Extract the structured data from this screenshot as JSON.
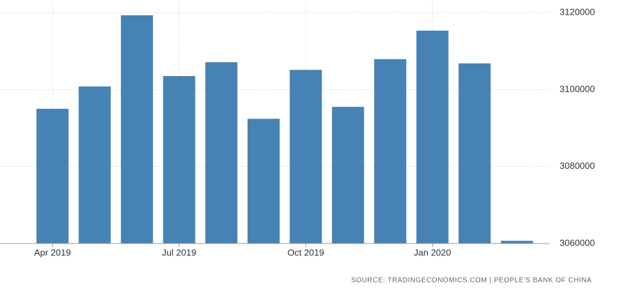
{
  "chart_data": {
    "type": "bar",
    "categories": [
      "Apr 2019",
      null,
      null,
      "Jul 2019",
      null,
      null,
      "Oct 2019",
      null,
      null,
      "Jan 2020",
      null,
      null
    ],
    "values": [
      3095000,
      3100800,
      3119300,
      3103500,
      3107100,
      3092400,
      3105100,
      3095500,
      3107900,
      3115300,
      3106800,
      3060700
    ],
    "color": "#4682b4",
    "ylim": [
      3060000,
      3120000
    ],
    "yticks": [
      3060000,
      3080000,
      3100000,
      3120000
    ],
    "grid": true,
    "source": "SOURCE: TRADINGECONOMICS.COM | PEOPLE'S BANK OF CHINA"
  }
}
